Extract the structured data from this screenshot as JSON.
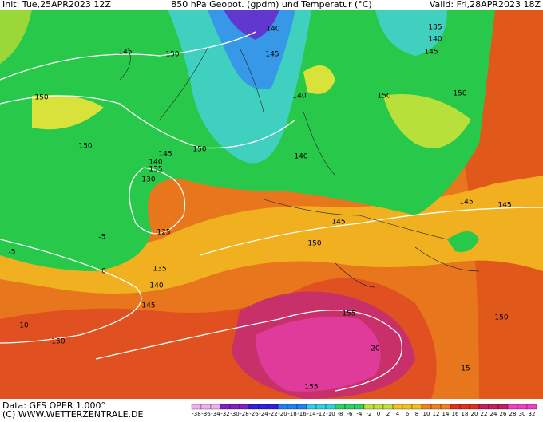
{
  "header": {
    "init": "Init: Tue,25APR2023 12Z",
    "title": "850 hPa Geopot. (gpdm) und Temperatur (°C)",
    "valid": "Valid: Fri,28APR2023 18Z"
  },
  "contour_labels": [
    "140",
    "135",
    "140",
    "145",
    "145",
    "150",
    "145",
    "150",
    "140",
    "150",
    "150",
    "150",
    "145",
    "150",
    "140",
    "135",
    "140",
    "130",
    "125",
    "145",
    "145",
    "145",
    "150",
    "135",
    "140",
    "145",
    "150",
    "155",
    "150",
    "155",
    "0",
    "-5",
    "-5",
    "10",
    "15",
    "20"
  ],
  "footer": {
    "source": "Data: GFS OPER 1.000°",
    "copyright": "(C) WWW.WETTERZENTRALE.DE"
  },
  "scale_labels": [
    "-38",
    "-36",
    "-34",
    "-32",
    "-30",
    "-28",
    "-26",
    "-24",
    "-22",
    "-20",
    "-18",
    "-16",
    "-14",
    "-12",
    "-10",
    "-8",
    "-6",
    "-4",
    "-2",
    "0",
    "2",
    "4",
    "6",
    "8",
    "10",
    "12",
    "14",
    "16",
    "18",
    "20",
    "22",
    "24",
    "26",
    "28",
    "30",
    "32"
  ]
}
